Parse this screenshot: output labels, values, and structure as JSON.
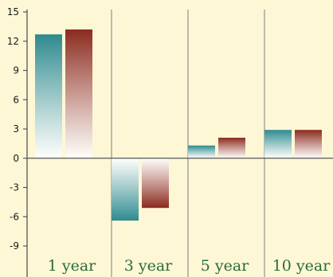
{
  "chart_data": {
    "type": "bar",
    "categories": [
      "1 year",
      "3 year",
      "5 year",
      "10 year"
    ],
    "series": [
      {
        "values": [
          12.7,
          -6.4,
          1.3,
          2.9
        ],
        "color": "#2e8a8f"
      },
      {
        "values": [
          13.2,
          -5.1,
          2.1,
          2.9
        ],
        "color": "#8b2a1e"
      }
    ],
    "ylim": [
      -9,
      15
    ],
    "yticks": [
      -9,
      -6,
      -3,
      0,
      3,
      6,
      9,
      12,
      15
    ],
    "yticklabels": [
      "-9",
      "-6",
      "-3",
      "0",
      "3",
      "6",
      "9",
      "12",
      "15"
    ],
    "grid": "vertical separators only",
    "title": "",
    "xlabel": "",
    "ylabel": ""
  },
  "colors": {
    "background": "#fdf7d6",
    "axis": "#555555",
    "separator": "#9a9a9a",
    "category_text": "#2b6b3a"
  }
}
